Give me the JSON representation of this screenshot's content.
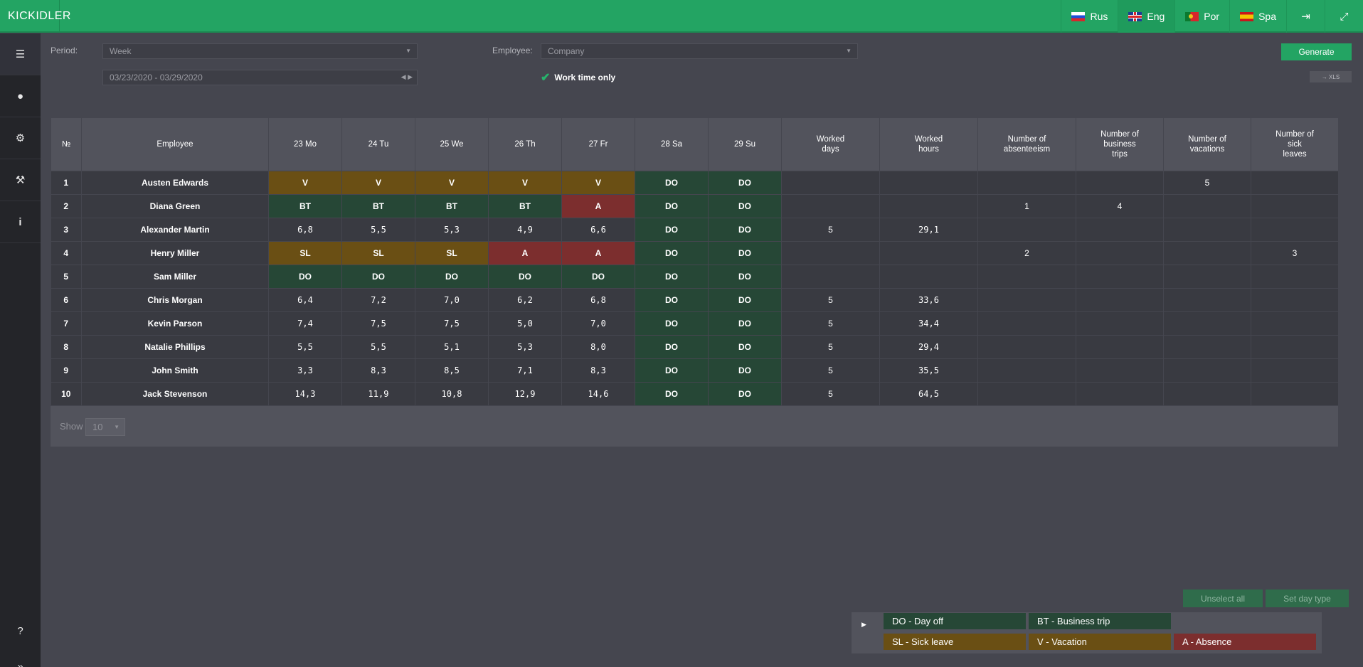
{
  "app": {
    "logo": "KICKIDLER"
  },
  "topbar": {
    "languages": [
      {
        "code": "ru",
        "label": "Rus",
        "active": false
      },
      {
        "code": "en",
        "label": "Eng",
        "active": true
      },
      {
        "code": "pt",
        "label": "Por",
        "active": false
      },
      {
        "code": "es",
        "label": "Spa",
        "active": false
      }
    ],
    "logout_icon": "logout-icon",
    "fullscreen_icon": "expand-icon"
  },
  "sidebar": {
    "items": [
      {
        "icon": "list-icon",
        "glyph": "☰"
      },
      {
        "icon": "user-icon",
        "glyph": "👤"
      },
      {
        "icon": "gears-icon",
        "glyph": "⚙"
      },
      {
        "icon": "wrench-icon",
        "glyph": "🔧"
      },
      {
        "icon": "info-icon",
        "glyph": "i"
      }
    ],
    "help_glyph": "?",
    "collapse_glyph": "»"
  },
  "filters": {
    "period_label": "Period:",
    "period_value": "Week",
    "date_range": "03/23/2020 - 03/29/2020",
    "employee_label": "Employee:",
    "employee_value": "Company",
    "work_time_only": "Work time only",
    "generate": "Generate",
    "xls": "→ XLS"
  },
  "table": {
    "headers": [
      "№",
      "Employee",
      "23 Mo",
      "24 Tu",
      "25 We",
      "26 Th",
      "27 Fr",
      "28 Sa",
      "29 Su",
      "Worked\ndays",
      "Worked\nhours",
      "Number of\nabsenteeism",
      "Number of\nbusiness\ntrips",
      "Number of\nvacations",
      "Number of\nsick\nleaves"
    ],
    "rows": [
      {
        "n": "1",
        "name": "Austen Edwards",
        "days": [
          "V",
          "V",
          "V",
          "V",
          "V",
          "DO",
          "DO"
        ],
        "worked_days": "",
        "worked_hours": "",
        "absenteeism": "",
        "business_trips": "",
        "vacations": "5",
        "sick_leaves": ""
      },
      {
        "n": "2",
        "name": "Diana Green",
        "days": [
          "BT",
          "BT",
          "BT",
          "BT",
          "A",
          "DO",
          "DO"
        ],
        "worked_days": "",
        "worked_hours": "",
        "absenteeism": "1",
        "business_trips": "4",
        "vacations": "",
        "sick_leaves": ""
      },
      {
        "n": "3",
        "name": "Alexander Martin",
        "days": [
          "6,8",
          "5,5",
          "5,3",
          "4,9",
          "6,6",
          "DO",
          "DO"
        ],
        "worked_days": "5",
        "worked_hours": "29,1",
        "absenteeism": "",
        "business_trips": "",
        "vacations": "",
        "sick_leaves": ""
      },
      {
        "n": "4",
        "name": "Henry Miller",
        "days": [
          "SL",
          "SL",
          "SL",
          "A",
          "A",
          "DO",
          "DO"
        ],
        "worked_days": "",
        "worked_hours": "",
        "absenteeism": "2",
        "business_trips": "",
        "vacations": "",
        "sick_leaves": "3"
      },
      {
        "n": "5",
        "name": "Sam Miller",
        "days": [
          "DO",
          "DO",
          "DO",
          "DO",
          "DO",
          "DO",
          "DO"
        ],
        "worked_days": "",
        "worked_hours": "",
        "absenteeism": "",
        "business_trips": "",
        "vacations": "",
        "sick_leaves": ""
      },
      {
        "n": "6",
        "name": "Chris Morgan",
        "days": [
          "6,4",
          "7,2",
          "7,0",
          "6,2",
          "6,8",
          "DO",
          "DO"
        ],
        "worked_days": "5",
        "worked_hours": "33,6",
        "absenteeism": "",
        "business_trips": "",
        "vacations": "",
        "sick_leaves": ""
      },
      {
        "n": "7",
        "name": "Kevin Parson",
        "days": [
          "7,4",
          "7,5",
          "7,5",
          "5,0",
          "7,0",
          "DO",
          "DO"
        ],
        "worked_days": "5",
        "worked_hours": "34,4",
        "absenteeism": "",
        "business_trips": "",
        "vacations": "",
        "sick_leaves": ""
      },
      {
        "n": "8",
        "name": "Natalie Phillips",
        "days": [
          "5,5",
          "5,5",
          "5,1",
          "5,3",
          "8,0",
          "DO",
          "DO"
        ],
        "worked_days": "5",
        "worked_hours": "29,4",
        "absenteeism": "",
        "business_trips": "",
        "vacations": "",
        "sick_leaves": ""
      },
      {
        "n": "9",
        "name": "John Smith",
        "days": [
          "3,3",
          "8,3",
          "8,5",
          "7,1",
          "8,3",
          "DO",
          "DO"
        ],
        "worked_days": "5",
        "worked_hours": "35,5",
        "absenteeism": "",
        "business_trips": "",
        "vacations": "",
        "sick_leaves": ""
      },
      {
        "n": "10",
        "name": "Jack Stevenson",
        "days": [
          "14,3",
          "11,9",
          "10,8",
          "12,9",
          "14,6",
          "DO",
          "DO"
        ],
        "worked_days": "5",
        "worked_hours": "64,5",
        "absenteeism": "",
        "business_trips": "",
        "vacations": "",
        "sick_leaves": ""
      }
    ],
    "show_label": "Show",
    "show_value": "10"
  },
  "actions": {
    "unselect_all": "Unselect all",
    "set_day_type": "Set day type"
  },
  "legend": {
    "do": "DO - Day off",
    "bt": "BT - Business trip",
    "sl": "SL - Sick leave",
    "v": "V - Vacation",
    "a": "A - Absence"
  },
  "colors": {
    "accent": "#23a463",
    "day_off": "#264736",
    "vacation": "#6a4f14",
    "absence": "#7c2e2e"
  }
}
